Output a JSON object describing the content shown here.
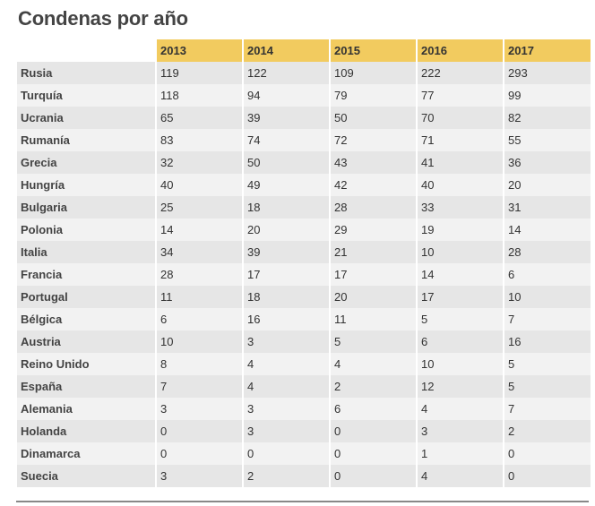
{
  "title": "Condenas por año",
  "chart_data": {
    "type": "table",
    "title": "Condenas por año",
    "columns": [
      "2013",
      "2014",
      "2015",
      "2016",
      "2017"
    ],
    "rows": [
      {
        "label": "Rusia",
        "values": [
          119,
          122,
          109,
          222,
          293
        ]
      },
      {
        "label": "Turquía",
        "values": [
          118,
          94,
          79,
          77,
          99
        ]
      },
      {
        "label": "Ucrania",
        "values": [
          65,
          39,
          50,
          70,
          82
        ]
      },
      {
        "label": "Rumanía",
        "values": [
          83,
          74,
          72,
          71,
          55
        ]
      },
      {
        "label": "Grecia",
        "values": [
          32,
          50,
          43,
          41,
          36
        ]
      },
      {
        "label": "Hungría",
        "values": [
          40,
          49,
          42,
          40,
          20
        ]
      },
      {
        "label": "Bulgaria",
        "values": [
          25,
          18,
          28,
          33,
          31
        ]
      },
      {
        "label": "Polonia",
        "values": [
          14,
          20,
          29,
          19,
          14
        ]
      },
      {
        "label": "Italia",
        "values": [
          34,
          39,
          21,
          10,
          28
        ]
      },
      {
        "label": "Francia",
        "values": [
          28,
          17,
          17,
          14,
          6
        ]
      },
      {
        "label": "Portugal",
        "values": [
          11,
          18,
          20,
          17,
          10
        ]
      },
      {
        "label": "Bélgica",
        "values": [
          6,
          16,
          11,
          5,
          7
        ]
      },
      {
        "label": "Austria",
        "values": [
          10,
          3,
          5,
          6,
          16
        ]
      },
      {
        "label": "Reino Unido",
        "values": [
          8,
          4,
          4,
          10,
          5
        ]
      },
      {
        "label": "España",
        "values": [
          7,
          4,
          2,
          12,
          5
        ]
      },
      {
        "label": "Alemania",
        "values": [
          3,
          3,
          6,
          4,
          7
        ]
      },
      {
        "label": "Holanda",
        "values": [
          0,
          3,
          0,
          3,
          2
        ]
      },
      {
        "label": "Dinamarca",
        "values": [
          0,
          0,
          0,
          1,
          0
        ]
      },
      {
        "label": "Suecia",
        "values": [
          3,
          2,
          0,
          4,
          0
        ]
      }
    ]
  },
  "colors": {
    "header_accent": "#f2cb5f",
    "row_odd": "#e6e6e6",
    "row_even": "#f2f2f2"
  }
}
